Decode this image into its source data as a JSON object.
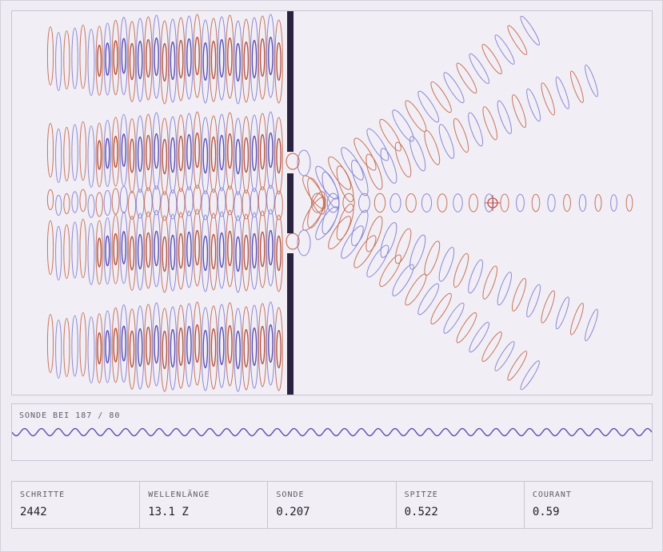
{
  "colors": {
    "positive": "#c8735e",
    "positive_strong": "#b5553f",
    "negative": "#8c86d6",
    "negative_strong": "#5a4fb0",
    "barrier": "#2a2340",
    "trace": "#5a4fb0",
    "probe_marker": "#c0504a"
  },
  "simulation": {
    "barrier": "double-slit wall",
    "probe_marker_icon": "crosshair-circle-icon"
  },
  "probe": {
    "title": "SONDE BEI 187 / 80"
  },
  "stats": [
    {
      "label": "SCHRITTE",
      "value": "2442"
    },
    {
      "label": "WELLENLÄNGE",
      "value": "13.1 Z"
    },
    {
      "label": "SONDE",
      "value": "0.207"
    },
    {
      "label": "SPITZE",
      "value": "0.522"
    },
    {
      "label": "COURANT",
      "value": "0.59"
    }
  ]
}
